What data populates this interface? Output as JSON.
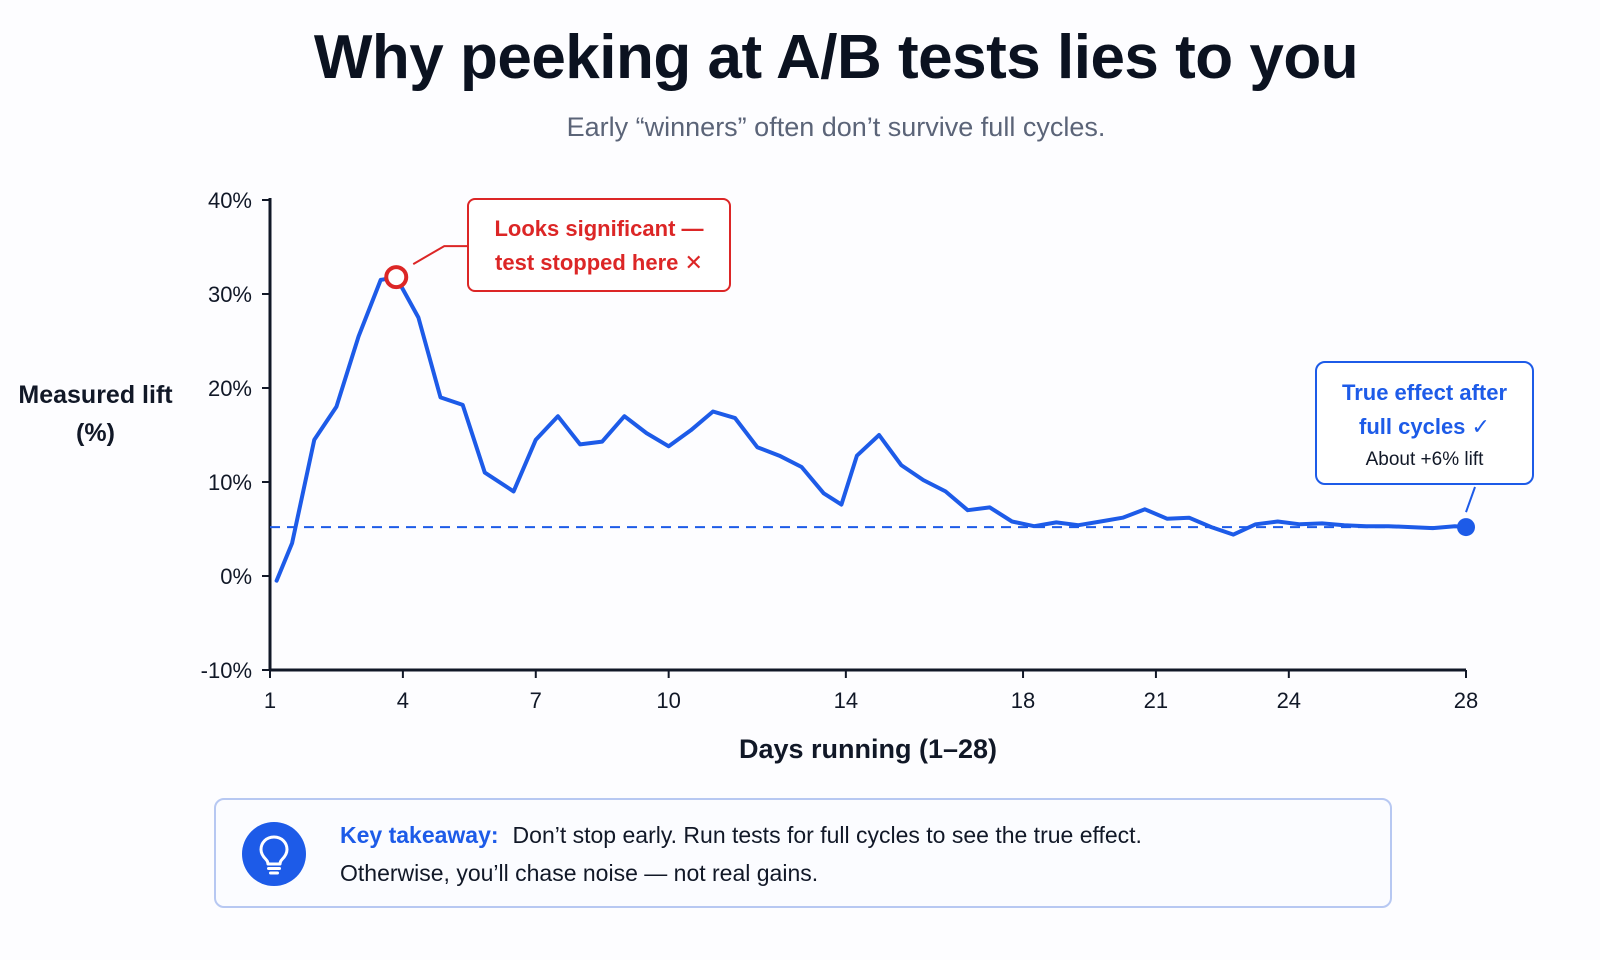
{
  "header": {
    "title": "Why peeking at A/B tests lies to you",
    "subtitle": "Early “winners” often don’t survive full cycles."
  },
  "chart_data": {
    "type": "line",
    "title": "Why peeking at A/B tests lies to you",
    "subtitle": "Early “winners” often don’t survive full cycles.",
    "ylabel": "Measured lift (%)",
    "xlabel": "Days running (1–28)",
    "xlim": [
      1,
      28
    ],
    "ylim": [
      -10,
      40
    ],
    "x_ticks": [
      {
        "value": 1,
        "label": "1"
      },
      {
        "value": 4,
        "label": "4"
      },
      {
        "value": 7,
        "label": "7"
      },
      {
        "value": 10,
        "label": "10"
      },
      {
        "value": 14,
        "label": "14"
      },
      {
        "value": 18,
        "label": "18"
      },
      {
        "value": 21,
        "label": "21"
      },
      {
        "value": 24,
        "label": "24"
      },
      {
        "value": 28,
        "label": "28"
      }
    ],
    "y_ticks": [
      {
        "value": 40,
        "label": "40%"
      },
      {
        "value": 30,
        "label": "30%"
      },
      {
        "value": 20,
        "label": "20%"
      },
      {
        "value": 10,
        "label": "10%"
      },
      {
        "value": 0,
        "label": "0%"
      },
      {
        "value": -10,
        "label": "-10%"
      }
    ],
    "grid": false,
    "series": [
      {
        "color": "#1d5be8",
        "x": [
          1.15,
          1.5,
          2.0,
          2.5,
          3.0,
          3.5,
          3.85,
          4.35,
          4.85,
          5.35,
          5.85,
          6.5,
          7.0,
          7.5,
          8.0,
          8.5,
          9.0,
          9.5,
          10.0,
          10.5,
          11.0,
          11.5,
          12.0,
          12.5,
          13.0,
          13.5,
          13.9,
          14.25,
          14.75,
          15.25,
          15.75,
          16.25,
          16.75,
          17.25,
          17.75,
          18.25,
          18.75,
          19.25,
          19.75,
          20.25,
          20.75,
          21.25,
          21.75,
          22.25,
          22.75,
          23.25,
          23.75,
          24.25,
          24.75,
          25.25,
          25.75,
          26.25,
          26.75,
          27.25,
          27.75,
          28.0
        ],
        "y": [
          -0.5,
          3.5,
          14.5,
          18,
          25.5,
          31.5,
          31.8,
          27.5,
          19,
          18.2,
          11,
          9,
          14.5,
          17,
          14,
          14.3,
          17,
          15.2,
          13.8,
          15.5,
          17.5,
          16.8,
          13.7,
          12.8,
          11.6,
          8.8,
          7.6,
          12.8,
          15,
          11.8,
          10.2,
          9,
          7,
          7.3,
          5.8,
          5.3,
          5.7,
          5.4,
          5.8,
          6.2,
          7.1,
          6.1,
          6.2,
          5.2,
          4.4,
          5.5,
          5.8,
          5.5,
          5.6,
          5.4,
          5.3,
          5.3,
          5.2,
          5.1,
          5.3,
          5.2
        ]
      }
    ],
    "reference_line": {
      "y": 5.2,
      "style": "dashed",
      "color": "#1d5be8"
    },
    "annotations": [
      {
        "x": 3.85,
        "y": 31.8,
        "marker": "ring",
        "color": "#dc2626",
        "line1": "Looks significant —",
        "line2": "test stopped here ✕"
      },
      {
        "x": 28.0,
        "y": 5.2,
        "marker": "dot",
        "color": "#1d5be8",
        "line1": "True effect after",
        "line2": "full cycles ✓",
        "line3": "About +6% lift"
      }
    ]
  },
  "takeaway": {
    "icon": "lightbulb-icon",
    "label": "Key takeaway:",
    "line1": "Don’t stop early. Run tests for full cycles to see the true effect.",
    "line2": "Otherwise, you’ll chase noise — not real gains."
  }
}
